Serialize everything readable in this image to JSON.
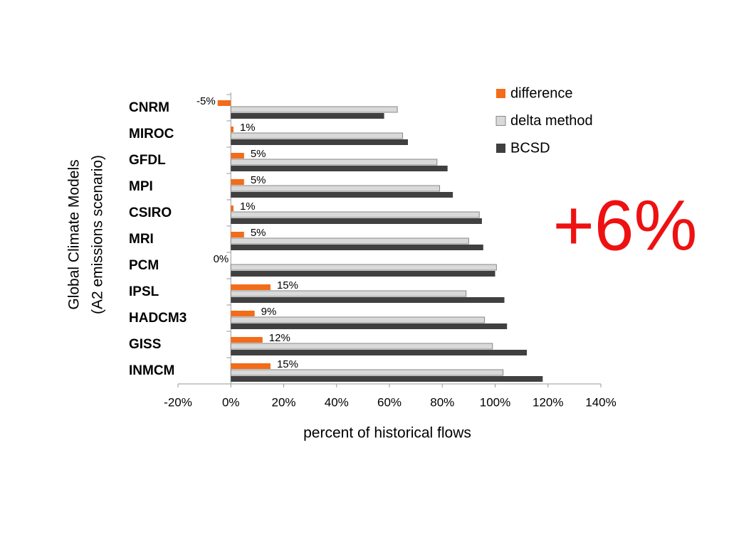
{
  "chart_data": {
    "type": "hbar",
    "categories": [
      "CNRM",
      "MIROC",
      "GFDL",
      "MPI",
      "CSIRO",
      "MRI",
      "PCM",
      "IPSL",
      "HADCM3",
      "GISS",
      "INMCM"
    ],
    "series": [
      {
        "name": "difference",
        "color": "#f26c1a",
        "values": [
          -5,
          1,
          5,
          5,
          1,
          5,
          0,
          15,
          9,
          12,
          15
        ],
        "value_labels": [
          "-5%",
          "1%",
          "5%",
          "5%",
          "1%",
          "5%",
          "0%",
          "15%",
          "9%",
          "12%",
          "15%"
        ]
      },
      {
        "name": "delta method",
        "color": "#d9d9d9",
        "values": [
          63,
          65,
          78,
          79,
          94,
          90,
          100.5,
          89,
          96,
          99,
          103
        ]
      },
      {
        "name": "BCSD",
        "color": "#404040",
        "values": [
          58,
          67,
          82,
          84,
          95,
          95.5,
          100,
          103.5,
          104.5,
          112,
          118
        ]
      }
    ],
    "xlim": [
      -20,
      140
    ],
    "xticks": [
      {
        "value": -20,
        "label": "-20%"
      },
      {
        "value": 0,
        "label": "0%"
      },
      {
        "value": 20,
        "label": "20%"
      },
      {
        "value": 40,
        "label": "40%"
      },
      {
        "value": 60,
        "label": "60%"
      },
      {
        "value": 80,
        "label": "80%"
      },
      {
        "value": 100,
        "label": "100%"
      },
      {
        "value": 120,
        "label": "120%"
      },
      {
        "value": 140,
        "label": "140%"
      }
    ],
    "xlabel": "percent of historical flows",
    "ylabel": [
      "Global Climate Models",
      "(A2 emissions scenario)"
    ],
    "annotation": "+6%",
    "legend": "top-right"
  }
}
